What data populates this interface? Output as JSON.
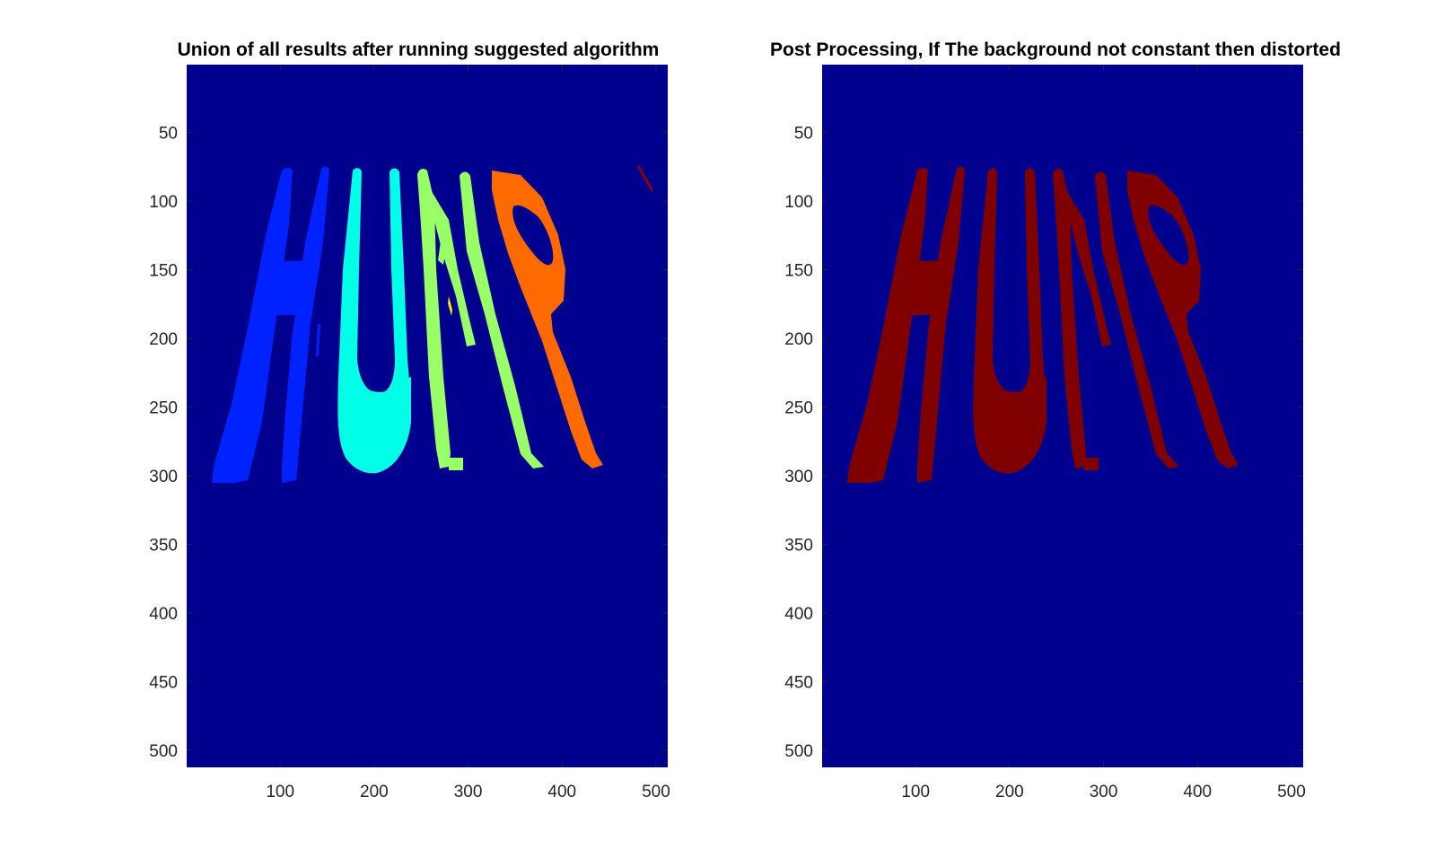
{
  "chart_data": [
    {
      "type": "heatmap",
      "title": "Union of all results after running suggested algorithm",
      "xlabel": "",
      "ylabel": "",
      "xlim": [
        0.5,
        512.5
      ],
      "ylim": [
        0.5,
        512.5
      ],
      "y_reversed": true,
      "x_ticks": [
        100,
        200,
        300,
        400,
        500
      ],
      "y_ticks": [
        50,
        100,
        150,
        200,
        250,
        300,
        350,
        400,
        450,
        500
      ],
      "colormap": "jet",
      "background_color": "#00008F",
      "content": "segmented letters H U M R",
      "regions": [
        {
          "label": "H",
          "color": "#0022FF"
        },
        {
          "label": "U",
          "color": "#00FFE6"
        },
        {
          "label": "M",
          "color": "#99FF66"
        },
        {
          "label": "R",
          "color": "#FF6A00"
        },
        {
          "label": "artifact",
          "color": "#8A0000"
        },
        {
          "label": "artifact",
          "color": "#FFE600"
        }
      ]
    },
    {
      "type": "heatmap",
      "title": "Post Processing, If The background not constant then distorted",
      "xlabel": "",
      "ylabel": "",
      "xlim": [
        0.5,
        512.5
      ],
      "ylim": [
        0.5,
        512.5
      ],
      "y_reversed": true,
      "x_ticks": [
        100,
        200,
        300,
        400,
        500
      ],
      "y_ticks": [
        50,
        100,
        150,
        200,
        250,
        300,
        350,
        400,
        450,
        500
      ],
      "colormap": "jet",
      "background_color": "#00008F",
      "content": "segmented letters H U M R merged",
      "regions": [
        {
          "label": "H",
          "color": "#800000"
        },
        {
          "label": "U",
          "color": "#800000"
        },
        {
          "label": "M",
          "color": "#800000"
        },
        {
          "label": "R",
          "color": "#800000"
        }
      ]
    }
  ]
}
